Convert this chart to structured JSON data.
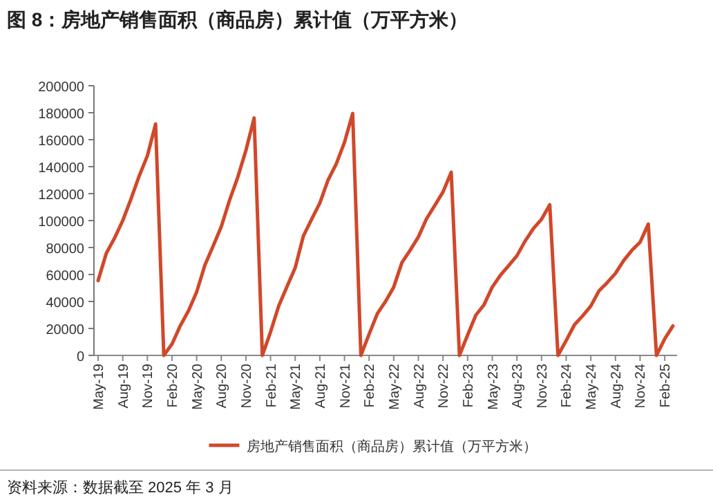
{
  "chart_data": {
    "type": "line",
    "title": "图 8：房地产销售面积（商品房）累计值（万平方米）",
    "categories": [
      "May-19",
      null,
      null,
      "Aug-19",
      null,
      null,
      "Nov-19",
      null,
      null,
      "Feb-20",
      null,
      null,
      "May-20",
      null,
      null,
      "Aug-20",
      null,
      null,
      "Nov-20",
      null,
      null,
      "Feb-21",
      null,
      null,
      "May-21",
      null,
      null,
      "Aug-21",
      null,
      null,
      "Nov-21",
      null,
      null,
      "Feb-22",
      null,
      null,
      "May-22",
      null,
      null,
      "Aug-22",
      null,
      null,
      "Nov-22",
      null,
      null,
      "Feb-23",
      null,
      null,
      "May-23",
      null,
      null,
      "Aug-23",
      null,
      null,
      "Nov-23",
      null,
      null,
      "Feb-24",
      null,
      null,
      "May-24",
      null,
      null,
      "Aug-24",
      null,
      null,
      "Nov-24",
      null,
      null,
      "Feb-25",
      null
    ],
    "series": [
      {
        "name": "房地产销售面积（商品房）累计值（万平方米）",
        "color": "#d0482a",
        "values": [
          55500,
          75800,
          87000,
          100000,
          116000,
          133000,
          148000,
          171600,
          0,
          8500,
          21900,
          33000,
          47000,
          66900,
          81000,
          95500,
          115000,
          132000,
          152000,
          176100,
          0,
          17400,
          36800,
          51000,
          65000,
          88600,
          101000,
          113000,
          130000,
          142000,
          158000,
          179400,
          0,
          15700,
          31000,
          40000,
          50700,
          68900,
          78000,
          87900,
          101400,
          111200,
          121200,
          135800,
          0,
          15100,
          29900,
          37600,
          50700,
          59500,
          66600,
          73900,
          84800,
          94000,
          101000,
          111700,
          0,
          11000,
          22700,
          29300,
          36600,
          47900,
          54000,
          60800,
          70300,
          77900,
          84000,
          97400,
          0,
          12300,
          21900
        ]
      }
    ],
    "ylim": [
      0,
      200000
    ],
    "yticks": [
      0,
      20000,
      40000,
      60000,
      80000,
      100000,
      120000,
      140000,
      160000,
      180000,
      200000
    ],
    "legend": "bottom",
    "annotations": [
      "资料来源：数据截至 2025 年 3 月"
    ]
  }
}
